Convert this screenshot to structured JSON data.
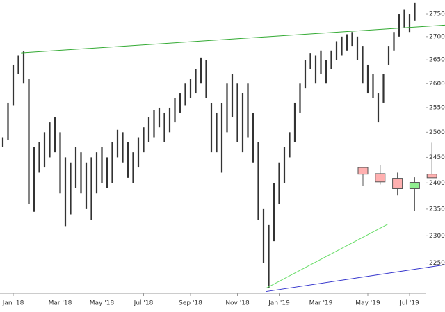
{
  "chart_data": {
    "type": "range-bar",
    "categories": [
      null,
      null,
      "Jan '18",
      null,
      null,
      null,
      null,
      null,
      null,
      null,
      null,
      "Mar '18",
      null,
      null,
      null,
      null,
      null,
      null,
      null,
      "May '18",
      null,
      null,
      null,
      null,
      null,
      null,
      null,
      "Jul '18",
      null,
      null,
      null,
      null,
      null,
      null,
      null,
      null,
      "Sep '18",
      null,
      null,
      null,
      null,
      null,
      null,
      null,
      null,
      "Nov '18",
      null,
      null,
      null,
      null,
      null,
      null,
      null,
      "Jan '19",
      null,
      null,
      null,
      null,
      null,
      null,
      null,
      "Mar '19",
      null,
      null,
      null,
      null,
      null,
      null,
      null,
      null,
      "May '19",
      null,
      null,
      null,
      null,
      null,
      null,
      null,
      "Jul '19",
      null
    ],
    "high": [
      2490,
      2560,
      2640,
      2660,
      2668,
      2610,
      2470,
      2480,
      2500,
      2520,
      2530,
      2500,
      2450,
      2440,
      2470,
      2460,
      2440,
      2450,
      2460,
      2470,
      2450,
      2480,
      2505,
      2500,
      2480,
      2460,
      2490,
      2510,
      2530,
      2545,
      2550,
      2540,
      2550,
      2570,
      2580,
      2600,
      2610,
      2630,
      2655,
      2650,
      2560,
      2540,
      2560,
      2600,
      2620,
      2600,
      2580,
      2600,
      2540,
      2480,
      2350,
      2320,
      2400,
      2440,
      2470,
      2500,
      2560,
      2600,
      2650,
      2665,
      2660,
      2670,
      2650,
      2670,
      2690,
      2700,
      2705,
      2710,
      2700,
      2680,
      2640,
      2620,
      2580,
      2620,
      2680,
      2710,
      2750,
      2760,
      2750,
      2775
    ],
    "low": [
      2470,
      2485,
      2555,
      2620,
      2600,
      2360,
      2345,
      2420,
      2430,
      2450,
      2460,
      2380,
      2318,
      2340,
      2390,
      2380,
      2350,
      2330,
      2380,
      2400,
      2390,
      2400,
      2450,
      2440,
      2410,
      2400,
      2430,
      2460,
      2480,
      2490,
      2510,
      2480,
      2500,
      2520,
      2540,
      2555,
      2570,
      2580,
      2600,
      2570,
      2460,
      2460,
      2420,
      2500,
      2530,
      2480,
      2460,
      2490,
      2440,
      2330,
      2250,
      2205,
      2290,
      2360,
      2400,
      2450,
      2480,
      2540,
      2590,
      2630,
      2600,
      2620,
      2600,
      2630,
      2650,
      2660,
      2670,
      2680,
      2650,
      2600,
      2580,
      2570,
      2520,
      2560,
      2640,
      2670,
      2700,
      2720,
      2710,
      2735
    ],
    "color": "#333333",
    "ylim": [
      2196,
      2781
    ],
    "yticks": [
      2250,
      2300,
      2350,
      2400,
      2450,
      2500,
      2550,
      2600,
      2650,
      2700,
      2750
    ],
    "log_scale": true,
    "grid": false,
    "candles": {
      "open": [
        2430,
        2418,
        2409,
        2389,
        2417
      ],
      "high": [
        2430,
        2435,
        2420,
        2411,
        2479
      ],
      "low": [
        2394,
        2397,
        2376,
        2347,
        2410
      ],
      "close": [
        2417,
        2402,
        2389,
        2401,
        2410
      ],
      "up_color": "#90ee90",
      "down_color": "#ffb0b0"
    },
    "trendlines": [
      {
        "color": "#33aa33",
        "x": [
          3.5,
          84.8
        ],
        "y": [
          2665,
          2725
        ]
      },
      {
        "color": "#66dd66",
        "x": [
          50.5,
          73.9
        ],
        "y": [
          2205,
          2322
        ]
      },
      {
        "color": "#3333cc",
        "x": [
          50.5,
          84.8
        ],
        "y": [
          2199,
          2247
        ]
      }
    ]
  }
}
